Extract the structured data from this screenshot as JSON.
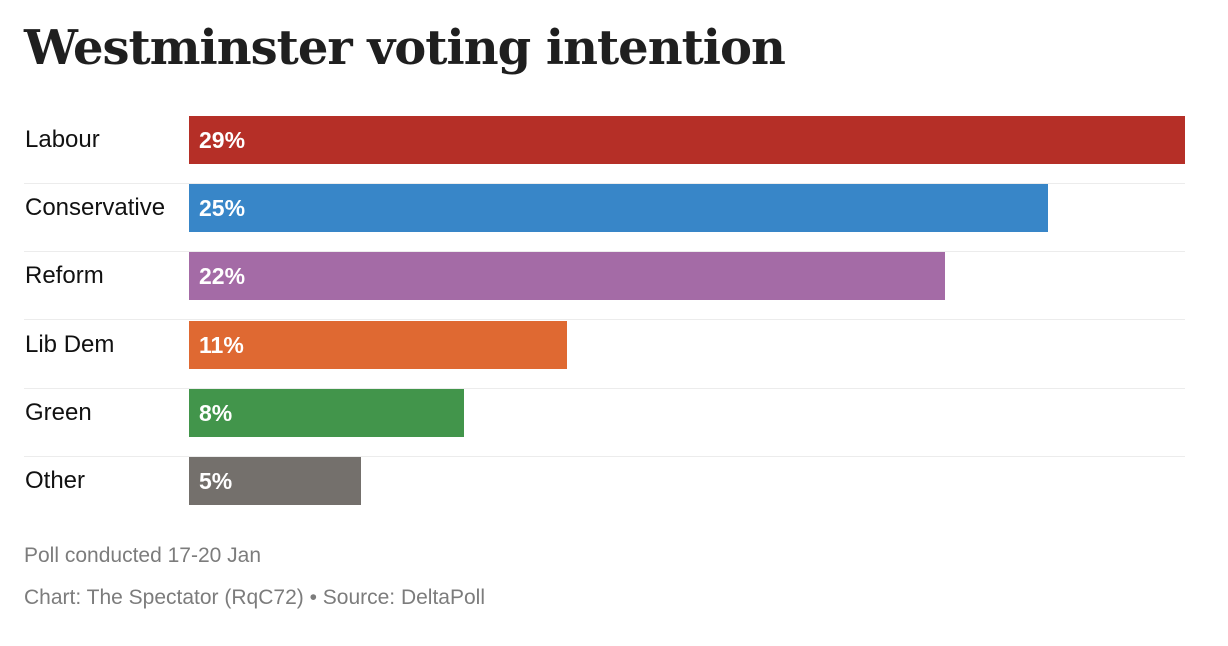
{
  "chart_data": {
    "type": "bar",
    "orientation": "horizontal",
    "title": "Westminster voting intention",
    "categories": [
      "Labour",
      "Conservative",
      "Reform",
      "Lib Dem",
      "Green",
      "Other"
    ],
    "values": [
      29,
      25,
      22,
      11,
      8,
      5
    ],
    "value_labels": [
      "29%",
      "25%",
      "22%",
      "11%",
      "8%",
      "5%"
    ],
    "colors": [
      "#b52f27",
      "#3886c8",
      "#a46ba6",
      "#df6932",
      "#42954b",
      "#74706c"
    ],
    "xlim": [
      0,
      29
    ],
    "xlabel": "",
    "ylabel": "",
    "grid": false,
    "legend": "none"
  },
  "notes": {
    "date": "Poll conducted 17-20 Jan",
    "source": "Chart: The Spectator (RqC72) • Source: DeltaPoll"
  }
}
